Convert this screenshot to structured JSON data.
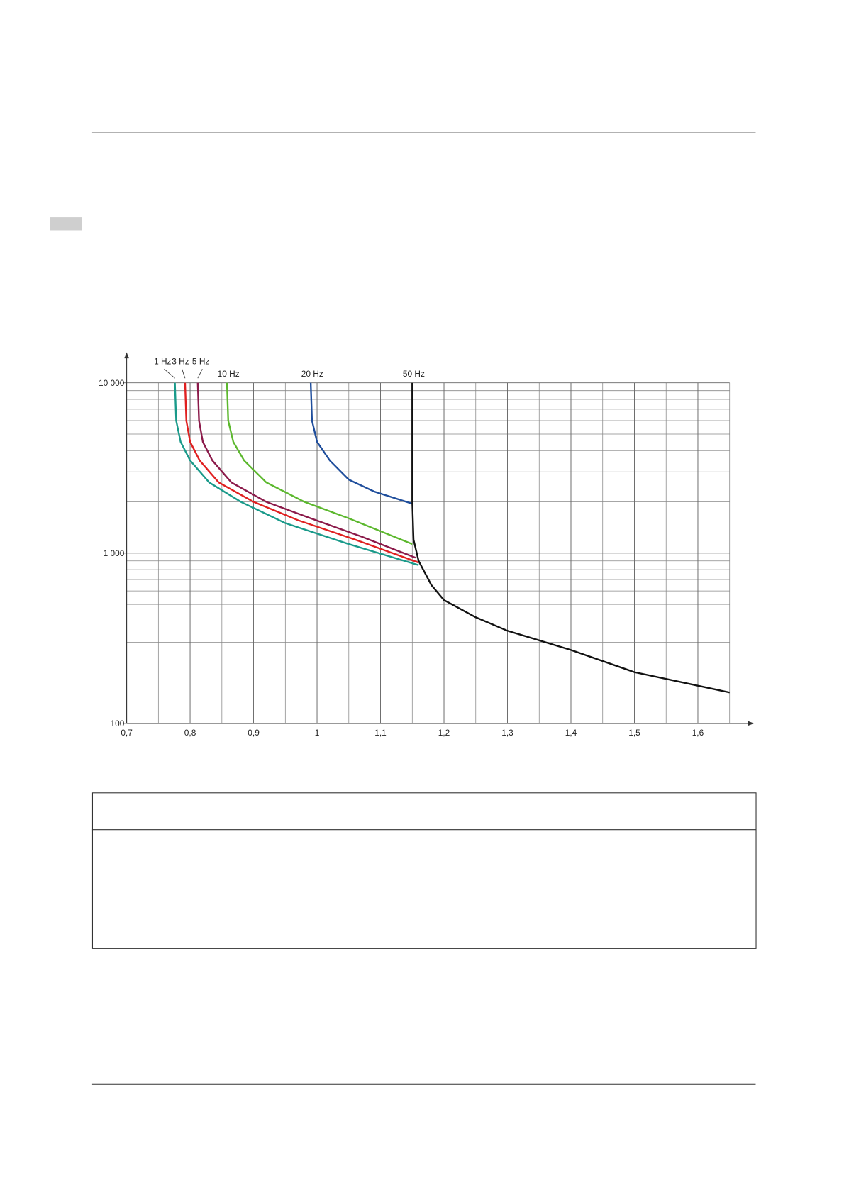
{
  "chart_data": {
    "type": "line",
    "log_y": true,
    "grid": true,
    "xlim": [
      0.7,
      1.65
    ],
    "ylim": [
      100,
      10000
    ],
    "xticks": [
      {
        "value": 0.7,
        "label": "0,7"
      },
      {
        "value": 0.8,
        "label": "0,8"
      },
      {
        "value": 0.9,
        "label": "0,9"
      },
      1,
      {
        "value": 1.1,
        "label": "1,1"
      },
      {
        "value": 1.2,
        "label": "1,2"
      },
      {
        "value": 1.3,
        "label": "1,3"
      },
      {
        "value": 1.4,
        "label": "1,4"
      },
      {
        "value": 1.5,
        "label": "1,5"
      },
      {
        "value": 1.6,
        "label": "1,6"
      }
    ],
    "yticks": [
      100,
      {
        "value": 1000,
        "label": "1 000"
      },
      {
        "value": 10000,
        "label": "10 000"
      }
    ],
    "series": [
      {
        "name": "1 Hz",
        "color": "#1a9a8a",
        "x": [
          0.776,
          0.778,
          0.785,
          0.8,
          0.83,
          0.88,
          0.95,
          1.05,
          1.16
        ],
        "values": [
          10000,
          6000,
          4500,
          3500,
          2600,
          2000,
          1500,
          1130,
          850
        ]
      },
      {
        "name": "3 Hz",
        "color": "#e02020",
        "x": [
          0.792,
          0.794,
          0.8,
          0.815,
          0.845,
          0.9,
          0.97,
          1.06,
          1.16
        ],
        "values": [
          10000,
          6000,
          4500,
          3500,
          2600,
          2000,
          1560,
          1200,
          880
        ]
      },
      {
        "name": "5 Hz",
        "color": "#8b1a4a",
        "x": [
          0.812,
          0.814,
          0.82,
          0.835,
          0.865,
          0.92,
          0.99,
          1.07,
          1.155
        ],
        "values": [
          10000,
          6000,
          4500,
          3500,
          2600,
          2000,
          1600,
          1250,
          940
        ]
      },
      {
        "name": "10 Hz",
        "color": "#5cb82e",
        "x": [
          0.858,
          0.86,
          0.868,
          0.885,
          0.92,
          0.98,
          1.05,
          1.15
        ],
        "values": [
          10000,
          6000,
          4500,
          3500,
          2600,
          2000,
          1600,
          1130
        ]
      },
      {
        "name": "20 Hz",
        "color": "#1f4e9c",
        "x": [
          0.99,
          0.992,
          1.0,
          1.02,
          1.05,
          1.09,
          1.15
        ],
        "values": [
          10000,
          6000,
          4500,
          3500,
          2700,
          2300,
          1950
        ]
      },
      {
        "name": "50 Hz",
        "color": "#111111",
        "x": [
          1.15,
          1.15,
          1.152,
          1.16,
          1.18,
          1.2,
          1.25,
          1.3,
          1.4,
          1.5,
          1.65
        ],
        "values": [
          10000,
          2000,
          1200,
          900,
          650,
          530,
          420,
          350,
          270,
          200,
          152
        ]
      }
    ]
  }
}
